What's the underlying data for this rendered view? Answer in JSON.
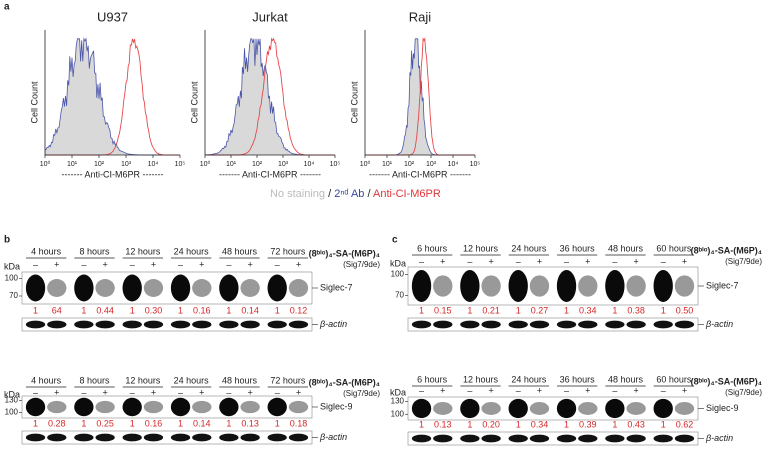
{
  "panel_a": {
    "label": "a",
    "plots": [
      {
        "title": "U937"
      },
      {
        "title": "Jurkat"
      },
      {
        "title": "Raji"
      }
    ],
    "ylabel": "Cell Count",
    "xlabel": "------- Anti-CI-M6PR -------",
    "xticks": [
      "10⁰",
      "10¹",
      "10²",
      "10³",
      "10⁴",
      "10⁵"
    ],
    "legend": [
      "No staining",
      "/",
      "2ⁿᵈ Ab",
      "/",
      "Anti-CI-M6PR"
    ]
  },
  "panel_b": {
    "label": "b",
    "blocks": [
      {
        "times": [
          "4 hours",
          "8 hours",
          "12 hours",
          "24 hours",
          "48 hours",
          "72 hours"
        ],
        "signs": [
          "–",
          "+"
        ],
        "kda": "kDa",
        "markers": [
          "100",
          "70"
        ],
        "protein": "Siglec-7",
        "control": "β-actin",
        "ratios": [
          "1",
          "64",
          "1",
          "0.44",
          "1",
          "0.30",
          "1",
          "0.16",
          "1",
          "0.14",
          "1",
          "0.12"
        ],
        "treatment": [
          "(8ᵇⁱᵒ)₄-SA-(M6P)₄",
          "(Sig7/9de)"
        ]
      },
      {
        "times": [
          "4 hours",
          "8 hours",
          "12 hours",
          "24 hours",
          "48 hours",
          "72 hours"
        ],
        "signs": [
          "–",
          "+"
        ],
        "kda": "kDa",
        "markers": [
          "130",
          "100"
        ],
        "protein": "Siglec-9",
        "control": "β-actin",
        "ratios": [
          "1",
          "0.28",
          "1",
          "0.25",
          "1",
          "0.16",
          "1",
          "0.14",
          "1",
          "0.13",
          "1",
          "0.18"
        ],
        "treatment": [
          "(8ᵇⁱᵒ)₄-SA-(M6P)₄",
          "(Sig7/9de)"
        ]
      }
    ]
  },
  "panel_c": {
    "label": "c",
    "blocks": [
      {
        "times": [
          "6 hours",
          "12 hours",
          "24 hours",
          "36 hours",
          "48 hours",
          "60 hours"
        ],
        "signs": [
          "–",
          "+"
        ],
        "kda": "kDa",
        "markers": [
          "100",
          "70"
        ],
        "protein": "Siglec-7",
        "control": "β-actin",
        "ratios": [
          "1",
          "0.15",
          "1",
          "0.21",
          "1",
          "0.27",
          "1",
          "0.34",
          "1",
          "0.38",
          "1",
          "0.50"
        ],
        "treatment": [
          "(8ᵇⁱᵒ)₄-SA-(M6P)₄",
          "(Sig7/9de)"
        ]
      },
      {
        "times": [
          "6 hours",
          "12 hours",
          "24 hours",
          "36 hours",
          "48 hours",
          "60 hours"
        ],
        "signs": [
          "–",
          "+"
        ],
        "kda": "kDa",
        "markers": [
          "130",
          "100"
        ],
        "protein": "Siglec-9",
        "control": "β-actin",
        "ratios": [
          "1",
          "0.13",
          "1",
          "0.20",
          "1",
          "0.34",
          "1",
          "0.39",
          "1",
          "0.43",
          "1",
          "0.62"
        ],
        "treatment": [
          "(8ᵇⁱᵒ)₄-SA-(M6P)₄",
          "(Sig7/9de)"
        ]
      }
    ]
  }
}
